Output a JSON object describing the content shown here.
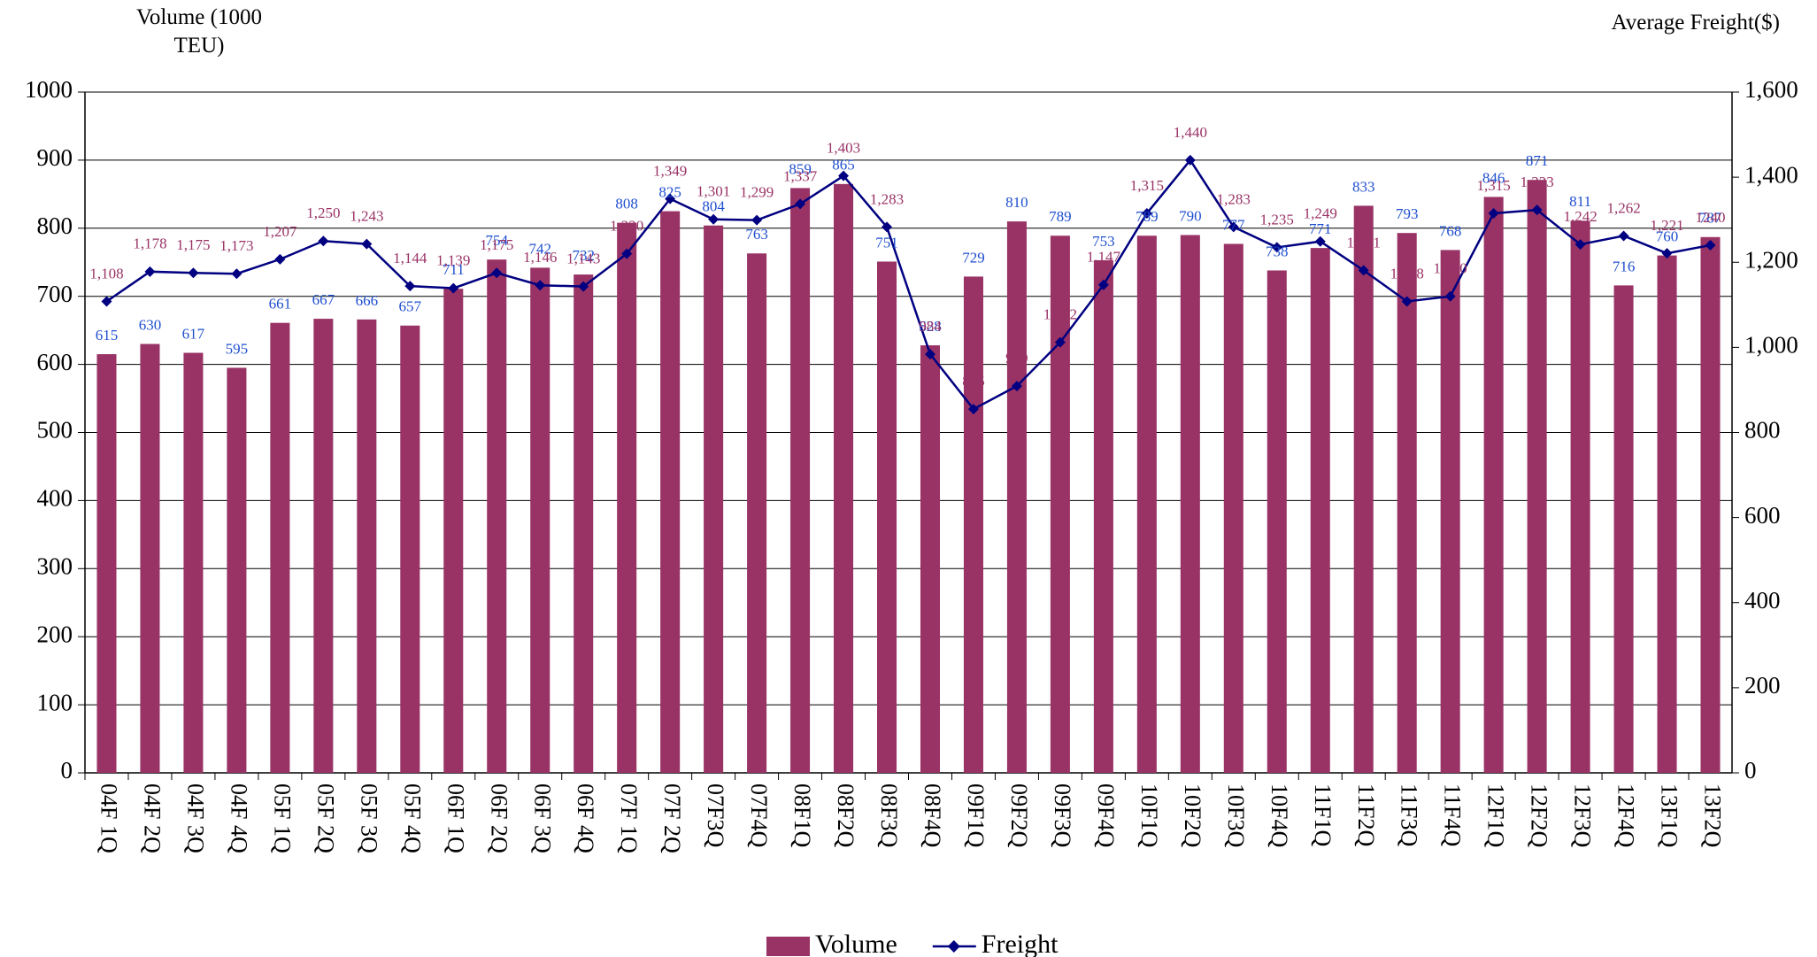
{
  "chart_data": {
    "type": "bar_line",
    "y_axis_label": "Volume (1000 TEU)",
    "y2_axis_label": "Average Freight($)",
    "categories": [
      "04F 1Q",
      "04F 2Q",
      "04F 3Q",
      "04F 4Q",
      "05F 1Q",
      "05F 2Q",
      "05F 3Q",
      "05F 4Q",
      "06F 1Q",
      "06F 2Q",
      "06F 3Q",
      "06F 4Q",
      "07F 1Q",
      "07F 2Q",
      "07F3Q",
      "07F4Q",
      "08F1Q",
      "08F2Q",
      "08F3Q",
      "08F4Q",
      "09F1Q",
      "09F2Q",
      "09F3Q",
      "09F4Q",
      "10F1Q",
      "10F2Q",
      "10F3Q",
      "10F4Q",
      "11F1Q",
      "11F2Q",
      "11F3Q",
      "11F4Q",
      "12F1Q",
      "12F2Q",
      "12F3Q",
      "12F4Q",
      "13F1Q",
      "13F2Q"
    ],
    "series": [
      {
        "name": "Volume",
        "type": "bar",
        "color": "#993366",
        "label_color": "#1f4fcf",
        "values": [
          615,
          630,
          617,
          595,
          661,
          667,
          666,
          657,
          711,
          754,
          742,
          732,
          808,
          825,
          804,
          763,
          859,
          865,
          751,
          628,
          729,
          810,
          789,
          753,
          789,
          790,
          777,
          738,
          771,
          833,
          793,
          768,
          846,
          871,
          811,
          716,
          760,
          787
        ]
      },
      {
        "name": "Freight",
        "type": "line",
        "axis": "y2",
        "color": "#000080",
        "label_color": "#993366",
        "values": [
          1108,
          1178,
          1175,
          1173,
          1207,
          1250,
          1243,
          1144,
          1139,
          1175,
          1146,
          1143,
          1220,
          1349,
          1301,
          1299,
          1337,
          1403,
          1283,
          984,
          855,
          909,
          1012,
          1147,
          1315,
          1440,
          1283,
          1235,
          1249,
          1181,
          1108,
          1120,
          1315,
          1323,
          1242,
          1262,
          1221,
          1240
        ],
        "value_labels": [
          "1,108",
          "1,178",
          "1,175",
          "1,173",
          "1,207",
          "1,250",
          "1,243",
          "1,144",
          "1,139",
          "1,175",
          "1,146",
          "1,143",
          "1,220",
          "1,349",
          "1,301",
          "1,299",
          "1,337",
          "1,403",
          "1,283",
          "984",
          "855",
          "909",
          "1,012",
          "1,147",
          "1,315",
          "1,440",
          "1,283",
          "1,235",
          "1,249",
          "1,181",
          "1,108",
          "1,120",
          "1,315",
          "1,323",
          "1,242",
          "1,262",
          "1,221",
          "1240"
        ]
      }
    ],
    "ylim": [
      0,
      1000
    ],
    "yticks": [
      0,
      100,
      200,
      300,
      400,
      500,
      600,
      700,
      800,
      900,
      1000
    ],
    "y2lim": [
      0,
      1600
    ],
    "y2ticks": [
      0,
      200,
      400,
      600,
      800,
      {
        "value": 1000,
        "label": "1,000"
      },
      {
        "value": 1200,
        "label": "1,200"
      },
      {
        "value": 1400,
        "label": "1,400"
      },
      {
        "value": 1600,
        "label": "1,600"
      }
    ],
    "grid": true,
    "legend": "bottom"
  }
}
